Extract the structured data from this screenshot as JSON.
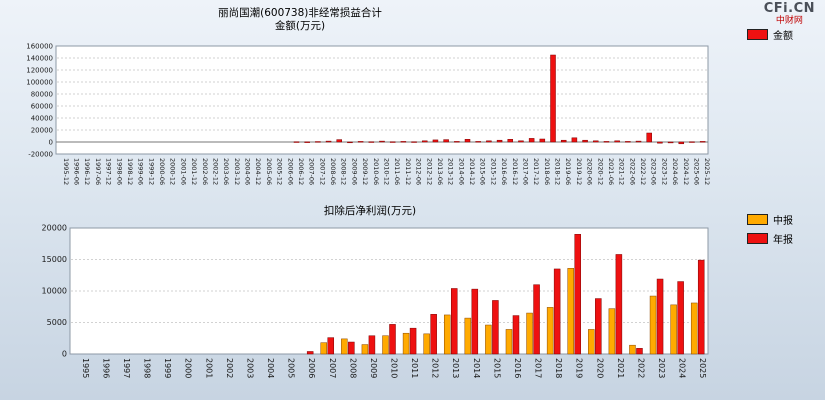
{
  "logo": {
    "en": "CFi.CN",
    "cn": "中财网"
  },
  "chart_data": [
    {
      "type": "bar",
      "title": "丽尚国潮(600738)非经常损益合计",
      "subtitle": "金额(万元)",
      "xlabel": "",
      "ylabel": "金额(万元)",
      "ylim": [
        -20000,
        160000
      ],
      "ytick_step": 20000,
      "grid": true,
      "legend_position": "top-right",
      "categories": [
        "1995-12",
        "1996-06",
        "1996-12",
        "1997-06",
        "1997-12",
        "1998-06",
        "1998-12",
        "1999-06",
        "1999-12",
        "2000-06",
        "2000-12",
        "2001-06",
        "2001-12",
        "2002-06",
        "2002-12",
        "2003-06",
        "2003-12",
        "2004-06",
        "2004-12",
        "2005-06",
        "2005-12",
        "2006-06",
        "2006-12",
        "2007-06",
        "2007-12",
        "2008-06",
        "2008-12",
        "2009-06",
        "2009-12",
        "2010-06",
        "2010-12",
        "2011-06",
        "2011-12",
        "2012-06",
        "2012-12",
        "2013-06",
        "2013-12",
        "2014-06",
        "2014-12",
        "2015-06",
        "2015-12",
        "2016-06",
        "2016-12",
        "2017-06",
        "2017-12",
        "2018-06",
        "2018-12",
        "2019-06",
        "2019-12",
        "2020-06",
        "2020-12",
        "2021-06",
        "2021-12",
        "2022-06",
        "2022-12",
        "2023-06",
        "2023-12",
        "2024-06",
        "2024-12",
        "2025-06",
        "2025-12"
      ],
      "series": [
        {
          "name": "金额",
          "color": "#ee1111",
          "stroke": "#7d0000",
          "values": [
            0,
            0,
            0,
            0,
            0,
            0,
            0,
            0,
            0,
            0,
            0,
            0,
            0,
            0,
            0,
            0,
            0,
            0,
            0,
            0,
            0,
            0,
            500,
            300,
            800,
            1500,
            4000,
            -1000,
            1000,
            500,
            1500,
            500,
            1000,
            500,
            2000,
            3500,
            4000,
            1000,
            4500,
            1000,
            2000,
            3000,
            4500,
            2000,
            6000,
            5000,
            145000,
            3000,
            7000,
            3000,
            2000,
            1000,
            2000,
            1000,
            1500,
            15000,
            -2000,
            -1500,
            -3000,
            500,
            1000
          ]
        }
      ]
    },
    {
      "type": "bar",
      "title": "扣除后净利润(万元)",
      "subtitle": "",
      "xlabel": "",
      "ylabel": "扣除后净利润(万元)",
      "ylim": [
        0,
        20000
      ],
      "ytick_step": 5000,
      "grid": true,
      "legend_position": "right",
      "categories": [
        "1995",
        "1996",
        "1997",
        "1998",
        "1999",
        "2000",
        "2001",
        "2002",
        "2003",
        "2004",
        "2005",
        "2006",
        "2007",
        "2008",
        "2009",
        "2010",
        "2011",
        "2012",
        "2013",
        "2014",
        "2015",
        "2016",
        "2017",
        "2018",
        "2019",
        "2020",
        "2021",
        "2022",
        "2023",
        "2024",
        "2025"
      ],
      "series": [
        {
          "name": "中报",
          "color": "#ffaa00",
          "stroke": "#8a4500",
          "values": [
            0,
            0,
            0,
            0,
            0,
            0,
            0,
            0,
            0,
            0,
            0,
            0,
            1800,
            2400,
            1500,
            2900,
            3300,
            3200,
            6200,
            5700,
            4600,
            3900,
            6500,
            7400,
            13600,
            3900,
            7200,
            1400,
            9200,
            7800,
            8100
          ]
        },
        {
          "name": "年报",
          "color": "#ee1111",
          "stroke": "#7d0000",
          "values": [
            0,
            0,
            0,
            0,
            0,
            0,
            0,
            0,
            0,
            0,
            0,
            400,
            2600,
            1900,
            2900,
            4700,
            4100,
            6300,
            10400,
            10300,
            8500,
            6100,
            11000,
            13500,
            19000,
            8800,
            15800,
            900,
            11900,
            11500,
            14900
          ]
        }
      ]
    }
  ]
}
